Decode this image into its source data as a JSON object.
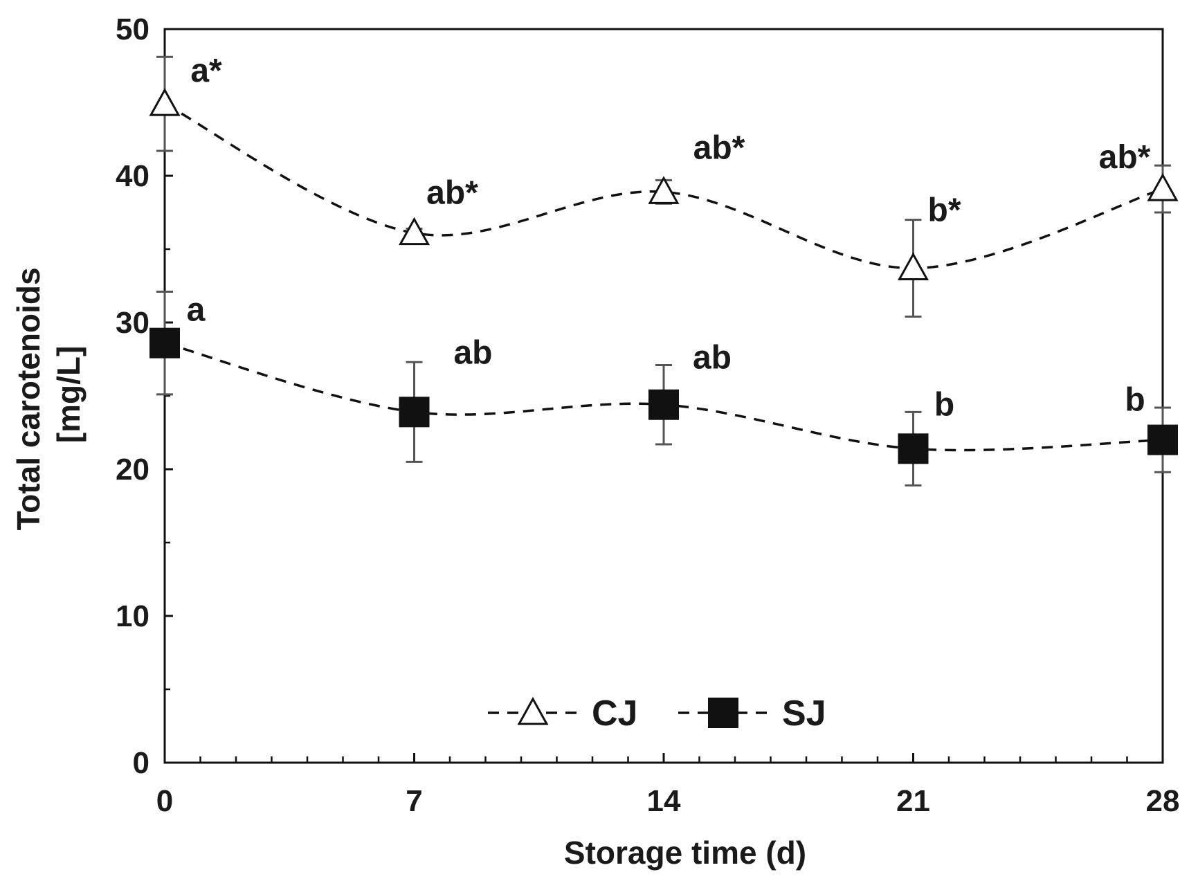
{
  "chart_data": {
    "type": "line",
    "title": "",
    "xlabel": "Storage time (d)",
    "ylabel": [
      "Total carotenoids",
      "[mg/L]"
    ],
    "x": [
      0,
      7,
      14,
      21,
      28
    ],
    "x_tick_labels": [
      "0",
      "7",
      "14",
      "21",
      "28"
    ],
    "xlim": [
      0,
      28
    ],
    "ylim": [
      0,
      50
    ],
    "y_ticks": [
      0,
      10,
      20,
      30,
      40,
      50
    ],
    "y_tick_labels": [
      "0",
      "10",
      "20",
      "30",
      "40",
      "50"
    ],
    "grid": false,
    "legend_position": "bottom-center",
    "series": [
      {
        "name": "CJ",
        "marker": "open-triangle",
        "color": "#000000",
        "values": [
          44.9,
          36.1,
          38.9,
          33.7,
          39.1
        ],
        "errors": [
          3.2,
          0.3,
          0.8,
          3.3,
          1.6
        ],
        "annotations": [
          "a*",
          "ab*",
          "ab*",
          "b*",
          "ab*"
        ]
      },
      {
        "name": "SJ",
        "marker": "filled-square",
        "color": "#000000",
        "values": [
          28.6,
          23.9,
          24.4,
          21.4,
          22.0
        ],
        "errors": [
          3.5,
          3.4,
          2.7,
          2.5,
          2.2
        ],
        "annotations": [
          "a",
          "ab",
          "ab",
          "b",
          "b"
        ]
      }
    ]
  }
}
